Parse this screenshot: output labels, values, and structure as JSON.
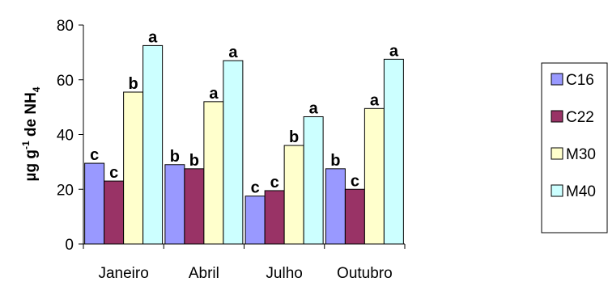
{
  "chart_data": {
    "type": "bar",
    "title": "",
    "xlabel": "",
    "ylabel": {
      "base": "µg g",
      "sup": "-1",
      "mid": " de NH",
      "sub": "4"
    },
    "ylim": [
      0,
      80
    ],
    "yticks": [
      0,
      20,
      40,
      60,
      80
    ],
    "grid": false,
    "legend_position": "right",
    "categories": [
      "Janeiro",
      "Abril",
      "Julho",
      "Outubro"
    ],
    "series": [
      {
        "name": "C16",
        "color": "#9999ff",
        "values": [
          29.5,
          29,
          17.5,
          27.5
        ],
        "letters": [
          "c",
          "b",
          "c",
          "b"
        ]
      },
      {
        "name": "C22",
        "color": "#993366",
        "values": [
          23,
          27.5,
          19.5,
          20
        ],
        "letters": [
          "c",
          "b",
          "c",
          "c"
        ]
      },
      {
        "name": "M30",
        "color": "#ffffcc",
        "values": [
          55.5,
          52,
          36,
          49.5
        ],
        "letters": [
          "b",
          "a",
          "b",
          "a"
        ]
      },
      {
        "name": "M40",
        "color": "#ccffff",
        "values": [
          72.5,
          67,
          46.5,
          67.5
        ],
        "letters": [
          "a",
          "a",
          "a",
          "a"
        ]
      }
    ]
  }
}
